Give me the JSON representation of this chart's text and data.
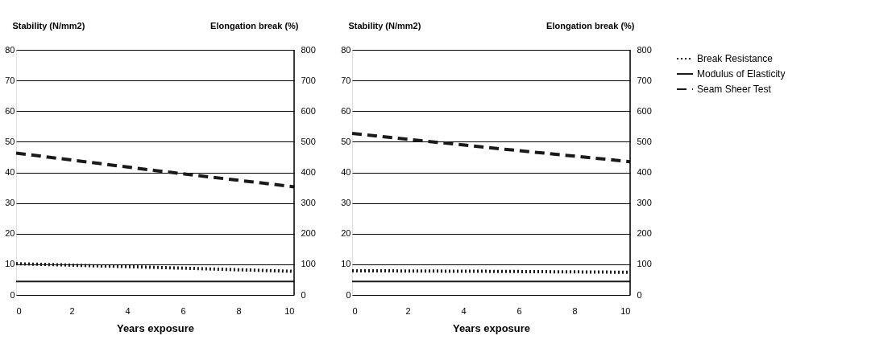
{
  "chart_data": [
    {
      "type": "line",
      "xlabel": "Years exposure",
      "ylabel": "Stability (N/mm2)",
      "y2label": "Elongation break (%)",
      "xlim": [
        0,
        10
      ],
      "xticks": [
        0,
        2,
        4,
        6,
        8,
        10
      ],
      "ylim": [
        0,
        80
      ],
      "yticks": [
        0,
        10,
        20,
        30,
        40,
        50,
        60,
        70,
        80
      ],
      "y2lim": [
        0,
        800
      ],
      "y2ticks": [
        0,
        100,
        200,
        300,
        400,
        500,
        600,
        700,
        800
      ],
      "grid": "y",
      "legend": "right",
      "x": [
        0,
        5,
        10
      ],
      "series": [
        {
          "name": "Break Resistance",
          "color": "#1a1a1a",
          "line_style": "dotted",
          "values": [
            10.2,
            9,
            7.7
          ]
        },
        {
          "name": "Modulus of Elasticity",
          "color": "#1a1a1a",
          "line_style": "solid",
          "values": [
            4.4,
            4.4,
            4.4
          ]
        },
        {
          "name": "Seam Sheer Test",
          "color": "#1a1a1a",
          "line_style": "dashed",
          "values": [
            46.3,
            40.6,
            35.3
          ]
        }
      ]
    },
    {
      "type": "line",
      "xlabel": "Years exposure",
      "ylabel": "Stability (N/mm2)",
      "y2label": "Elongation break (%)",
      "xlim": [
        0,
        10
      ],
      "xticks": [
        0,
        2,
        4,
        6,
        8,
        10
      ],
      "ylim": [
        0,
        80
      ],
      "yticks": [
        0,
        10,
        20,
        30,
        40,
        50,
        60,
        70,
        80
      ],
      "y2lim": [
        0,
        800
      ],
      "y2ticks": [
        0,
        100,
        200,
        300,
        400,
        500,
        600,
        700,
        800
      ],
      "grid": "y",
      "x": [
        0,
        5,
        10
      ],
      "series": [
        {
          "name": "Break Resistance",
          "color": "#1a1a1a",
          "line_style": "dotted",
          "values": [
            7.9,
            7.7,
            7.4
          ]
        },
        {
          "name": "Modulus of Elasticity",
          "color": "#1a1a1a",
          "line_style": "solid",
          "values": [
            4.4,
            4.4,
            4.4
          ]
        },
        {
          "name": "Seam Sheer Test",
          "color": "#1a1a1a",
          "line_style": "dashed",
          "values": [
            52.7,
            48.0,
            43.5
          ]
        }
      ]
    }
  ]
}
